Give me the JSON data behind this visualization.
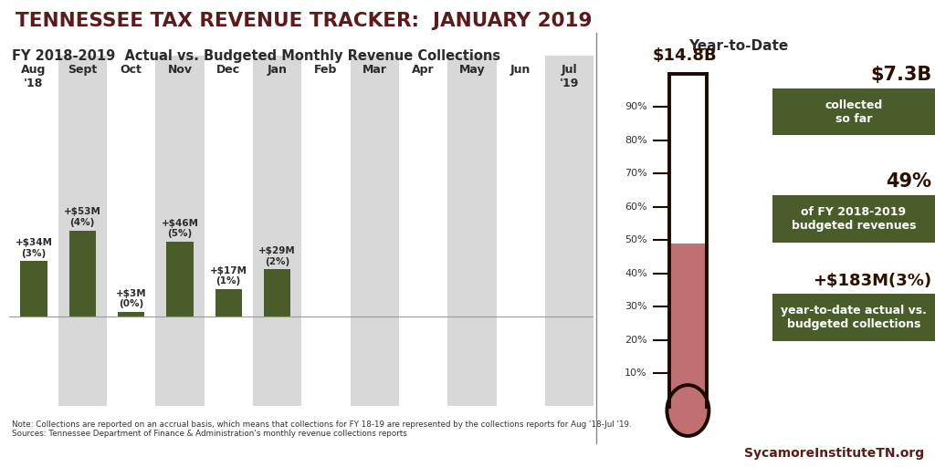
{
  "title": "TENNESSEE TAX REVENUE TRACKER:  JANUARY 2019",
  "title_color": "#5C1A1A",
  "subtitle": "FY 2018-2019  Actual vs. Budgeted Monthly Revenue Collections",
  "subtitle_color": "#2B2B2B",
  "months": [
    "Aug\n'18",
    "Sept",
    "Oct",
    "Nov",
    "Dec",
    "Jan",
    "Feb",
    "Mar",
    "Apr",
    "May",
    "Jun",
    "Jul\n'19"
  ],
  "bar_heights": [
    34,
    53,
    3,
    46,
    17,
    29,
    0,
    0,
    0,
    0,
    0,
    0
  ],
  "bar_labels": [
    "+$34M\n(3%)",
    "+$53M\n(4%)",
    "+$3M\n(0%)",
    "+$46M\n(5%)",
    "+$17M\n(1%)",
    "+$29M\n(2%)",
    "",
    "",
    "",
    "",
    "",
    ""
  ],
  "bar_color": "#4A5C2A",
  "bg_stripe_color": "#D8D8D8",
  "ytd_title": "Year-to-Date",
  "ytd_total": "$14.8B",
  "ytd_collected": "$7.3B",
  "ytd_collected_label": "collected\nso far",
  "ytd_pct": "49%",
  "ytd_pct_label": "of FY 2018-2019\nbudgeted revenues",
  "ytd_diff": "+$183M(3%)",
  "ytd_diff_label": "year-to-date actual vs.\nbudgeted collections",
  "thermo_fill_pct": 0.49,
  "thermo_color": "#C07070",
  "thermo_outline": "#1A0A00",
  "note_text": "Note: Collections are reported on an accrual basis, which means that collections for FY 18-19 are represented by the collections reports for Aug '18-Jul '19.\nSources: Tennessee Department of Finance & Administration's monthly revenue collections reports",
  "credit_text": "SycamoreInstituteTN.org",
  "credit_color": "#5C1A1A",
  "dark_text": "#2B1000",
  "white": "#FFFFFF",
  "green_box_color": "#4A5C2A"
}
